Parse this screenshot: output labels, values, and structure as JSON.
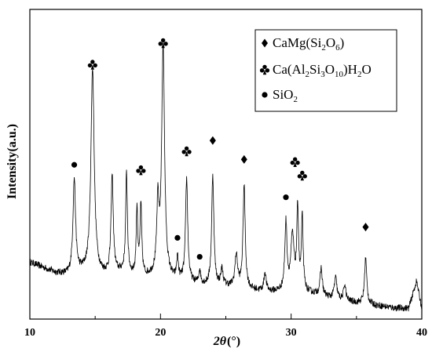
{
  "chart_data": {
    "type": "line",
    "xlabel_symbol": "2θ",
    "xlabel_unit": "(°)",
    "ylabel": "Intensity(a.u.)",
    "xlim": [
      10,
      40
    ],
    "xticks": [
      "10",
      "20",
      "30",
      "40"
    ],
    "ylim": [
      0,
      1
    ],
    "grid": false,
    "legend_position": "top-right",
    "legend": [
      {
        "marker": "diamond",
        "formula": [
          [
            "CaMg(Si",
            ""
          ],
          [
            "2",
            "sub"
          ],
          [
            "O",
            ""
          ],
          [
            "6",
            "sub"
          ],
          [
            ")",
            ""
          ]
        ]
      },
      {
        "marker": "club",
        "formula": [
          [
            "Ca(Al",
            ""
          ],
          [
            "2",
            "sub"
          ],
          [
            "Si",
            ""
          ],
          [
            "3",
            "sub"
          ],
          [
            "O",
            ""
          ],
          [
            "10",
            "sub"
          ],
          [
            ")H",
            ""
          ],
          [
            "2",
            "sub"
          ],
          [
            "O",
            ""
          ]
        ]
      },
      {
        "marker": "dot",
        "formula": [
          [
            "SiO",
            ""
          ],
          [
            "2",
            "sub"
          ]
        ]
      }
    ],
    "baseline": [
      [
        10.0,
        0.19
      ],
      [
        11.0,
        0.17
      ],
      [
        12.0,
        0.15
      ],
      [
        13.0,
        0.14
      ],
      [
        14.0,
        0.15
      ],
      [
        15.5,
        0.14
      ],
      [
        17.0,
        0.15
      ],
      [
        18.5,
        0.13
      ],
      [
        20.0,
        0.14
      ],
      [
        21.0,
        0.12
      ],
      [
        22.5,
        0.11
      ],
      [
        24.0,
        0.1
      ],
      [
        25.0,
        0.1
      ],
      [
        26.5,
        0.09
      ],
      [
        28.0,
        0.08
      ],
      [
        29.0,
        0.08
      ],
      [
        30.5,
        0.08
      ],
      [
        32.0,
        0.07
      ],
      [
        33.5,
        0.05
      ],
      [
        35.0,
        0.04
      ],
      [
        36.5,
        0.03
      ],
      [
        38.0,
        0.02
      ],
      [
        39.0,
        0.02
      ],
      [
        39.6,
        0.12
      ],
      [
        40.0,
        0.02
      ]
    ],
    "peaks": [
      {
        "x": 13.4,
        "h": 0.35,
        "w": 0.12
      },
      {
        "x": 14.8,
        "h": 0.76,
        "w": 0.15
      },
      {
        "x": 16.3,
        "h": 0.36,
        "w": 0.1
      },
      {
        "x": 17.4,
        "h": 0.37,
        "w": 0.08
      },
      {
        "x": 18.2,
        "h": 0.25,
        "w": 0.07
      },
      {
        "x": 18.5,
        "h": 0.26,
        "w": 0.08
      },
      {
        "x": 19.8,
        "h": 0.25,
        "w": 0.1
      },
      {
        "x": 20.2,
        "h": 0.85,
        "w": 0.13
      },
      {
        "x": 21.3,
        "h": 0.08,
        "w": 0.08
      },
      {
        "x": 22.0,
        "h": 0.38,
        "w": 0.1
      },
      {
        "x": 23.0,
        "h": 0.05,
        "w": 0.08
      },
      {
        "x": 24.0,
        "h": 0.41,
        "w": 0.1
      },
      {
        "x": 24.7,
        "h": 0.06,
        "w": 0.1
      },
      {
        "x": 25.8,
        "h": 0.12,
        "w": 0.12
      },
      {
        "x": 26.4,
        "h": 0.38,
        "w": 0.1
      },
      {
        "x": 28.0,
        "h": 0.07,
        "w": 0.1
      },
      {
        "x": 29.6,
        "h": 0.25,
        "w": 0.1
      },
      {
        "x": 30.1,
        "h": 0.2,
        "w": 0.15
      },
      {
        "x": 30.5,
        "h": 0.3,
        "w": 0.08
      },
      {
        "x": 30.85,
        "h": 0.27,
        "w": 0.08
      },
      {
        "x": 32.3,
        "h": 0.1,
        "w": 0.1
      },
      {
        "x": 33.4,
        "h": 0.08,
        "w": 0.12
      },
      {
        "x": 34.1,
        "h": 0.06,
        "w": 0.1
      },
      {
        "x": 35.7,
        "h": 0.17,
        "w": 0.1
      }
    ],
    "annotations": [
      {
        "x": 13.4,
        "y": 0.55,
        "marker": "dot"
      },
      {
        "x": 14.8,
        "y": 0.92,
        "marker": "club"
      },
      {
        "x": 18.5,
        "y": 0.53,
        "marker": "club"
      },
      {
        "x": 20.2,
        "y": 1.0,
        "marker": "club"
      },
      {
        "x": 21.3,
        "y": 0.28,
        "marker": "dot"
      },
      {
        "x": 22.0,
        "y": 0.6,
        "marker": "club"
      },
      {
        "x": 23.0,
        "y": 0.21,
        "marker": "dot"
      },
      {
        "x": 24.0,
        "y": 0.64,
        "marker": "diamond"
      },
      {
        "x": 26.4,
        "y": 0.57,
        "marker": "diamond"
      },
      {
        "x": 29.6,
        "y": 0.43,
        "marker": "dot"
      },
      {
        "x": 30.3,
        "y": 0.56,
        "marker": "club"
      },
      {
        "x": 30.85,
        "y": 0.51,
        "marker": "club"
      },
      {
        "x": 35.7,
        "y": 0.32,
        "marker": "diamond"
      }
    ]
  }
}
